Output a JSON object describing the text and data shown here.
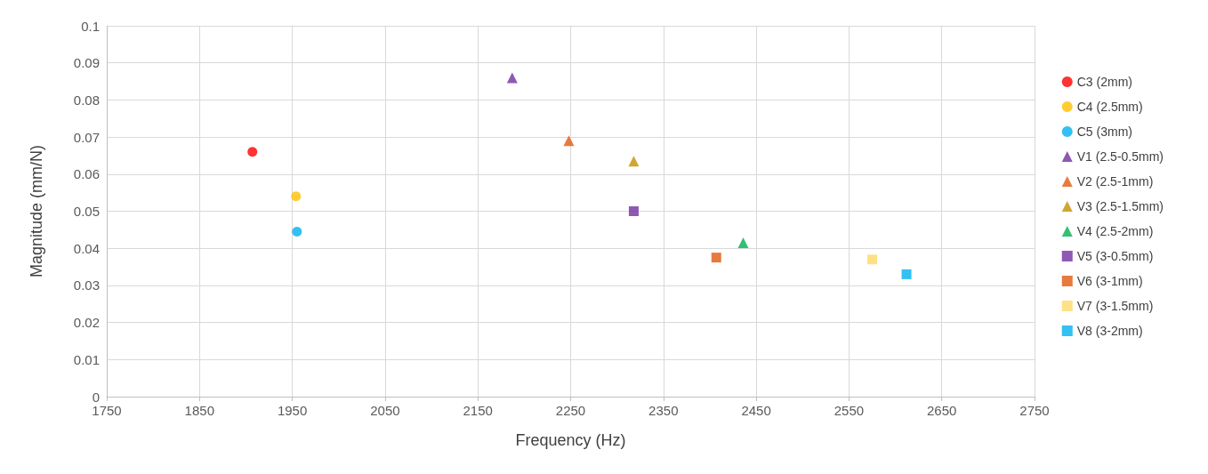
{
  "chart_data": {
    "type": "scatter",
    "xlabel": "Frequency (Hz)",
    "ylabel": "Magnitude (mm/N)",
    "xlim": [
      1750,
      2750
    ],
    "xticks": [
      1750,
      1850,
      1950,
      2050,
      2150,
      2250,
      2350,
      2450,
      2550,
      2650,
      2750
    ],
    "ylim": [
      0,
      0.1
    ],
    "yticks": [
      0,
      0.01,
      0.02,
      0.03,
      0.04,
      0.05,
      0.06,
      0.07,
      0.08,
      0.09,
      0.1
    ],
    "grid": true,
    "legend": "right",
    "series": [
      {
        "name": "C3 (2mm)",
        "color": "#ff0000",
        "marker": "circle",
        "x": [
          1907
        ],
        "values": [
          0.066
        ]
      },
      {
        "name": "C4 (2.5mm)",
        "color": "#ffc000",
        "marker": "circle",
        "x": [
          1954
        ],
        "values": [
          0.054
        ]
      },
      {
        "name": "C5 (3mm)",
        "color": "#00b0f0",
        "marker": "circle",
        "x": [
          1955
        ],
        "values": [
          0.0445
        ]
      },
      {
        "name": "V1 (2.5-0.5mm)",
        "color": "#7030a0",
        "marker": "triangle",
        "x": [
          2187
        ],
        "values": [
          0.086
        ]
      },
      {
        "name": "V2 (2.5-1mm)",
        "color": "#e05a0c",
        "marker": "triangle",
        "x": [
          2248
        ],
        "values": [
          0.069
        ]
      },
      {
        "name": "V3 (2.5-1.5mm)",
        "color": "#c49000",
        "marker": "triangle",
        "x": [
          2318
        ],
        "values": [
          0.0635
        ]
      },
      {
        "name": "V4 (2.5-2mm)",
        "color": "#00b050",
        "marker": "triangle",
        "x": [
          2436
        ],
        "values": [
          0.0415
        ]
      },
      {
        "name": "V5 (3-0.5mm)",
        "color": "#7030a0",
        "marker": "square",
        "x": [
          2318
        ],
        "values": [
          0.05
        ]
      },
      {
        "name": "V6 (3-1mm)",
        "color": "#e05a0c",
        "marker": "square",
        "x": [
          2407
        ],
        "values": [
          0.0375
        ]
      },
      {
        "name": "V7 (3-1.5mm)",
        "color": "#ffd966",
        "marker": "square",
        "x": [
          2575
        ],
        "values": [
          0.037
        ]
      },
      {
        "name": "V8 (3-2mm)",
        "color": "#00b0f0",
        "marker": "square",
        "x": [
          2612
        ],
        "values": [
          0.033
        ]
      }
    ]
  }
}
